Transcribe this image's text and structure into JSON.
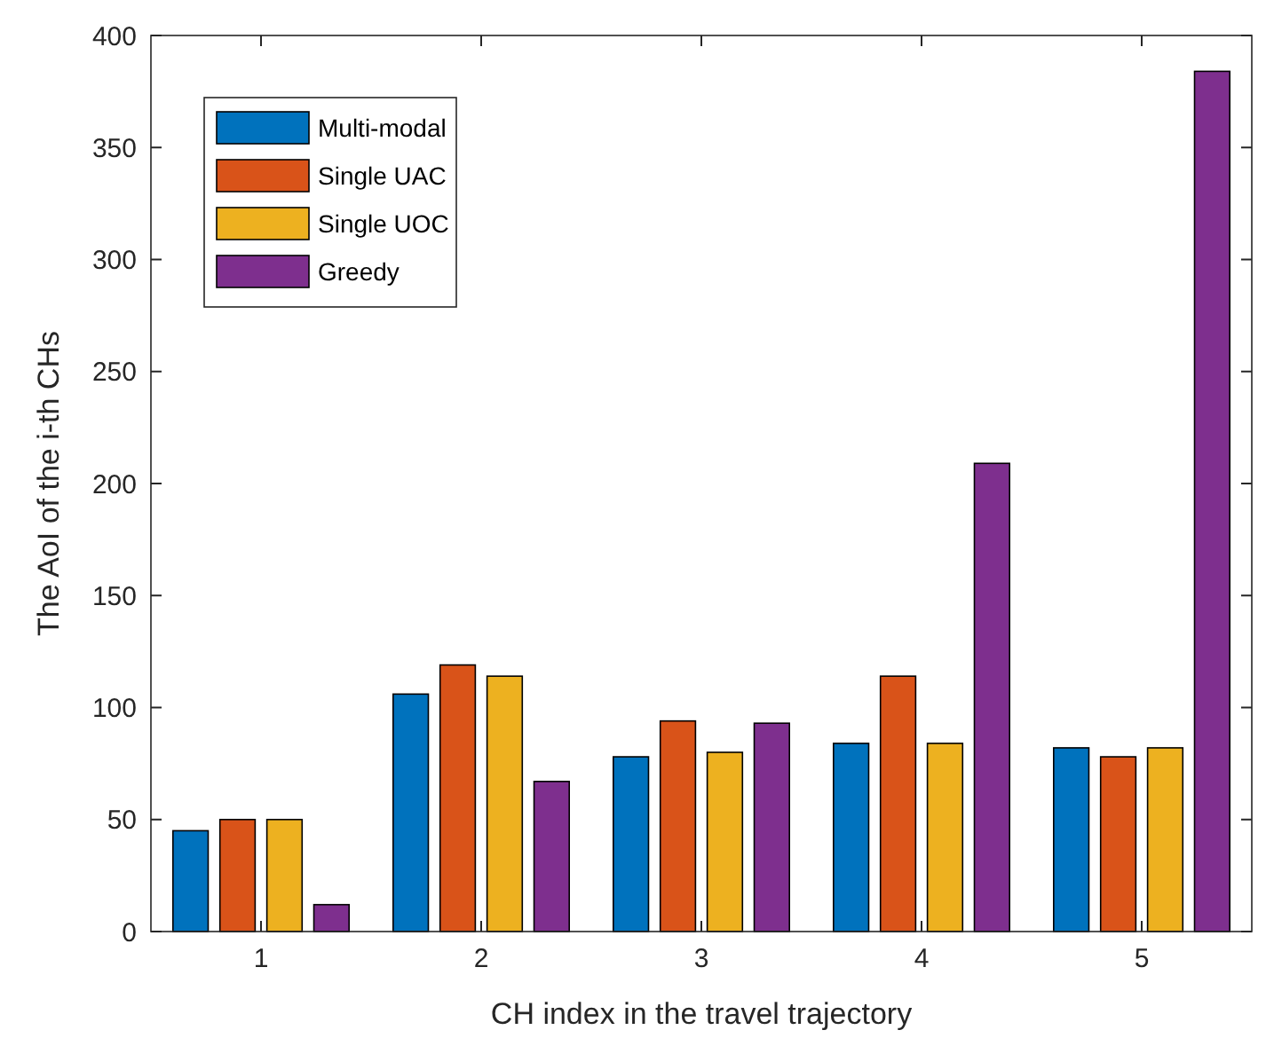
{
  "chart_data": {
    "type": "bar",
    "xlabel": "CH index in the travel trajectory",
    "ylabel": "The AoI of the i-th CHs",
    "categories": [
      "1",
      "2",
      "3",
      "4",
      "5"
    ],
    "series": [
      {
        "name": "Multi-modal",
        "color": "#0072bd",
        "values": [
          45,
          106,
          78,
          84,
          82
        ]
      },
      {
        "name": "Single UAC",
        "color": "#d95319",
        "values": [
          50,
          119,
          94,
          114,
          78
        ]
      },
      {
        "name": "Single UOC",
        "color": "#edb120",
        "values": [
          50,
          114,
          80,
          84,
          82
        ]
      },
      {
        "name": "Greedy",
        "color": "#7e2f8e",
        "values": [
          12,
          67,
          93,
          209,
          384
        ]
      }
    ],
    "ylim": [
      0,
      400
    ],
    "yticks": [
      0,
      50,
      100,
      150,
      200,
      250,
      300,
      350,
      400
    ],
    "grid": false,
    "legend": "top left"
  }
}
